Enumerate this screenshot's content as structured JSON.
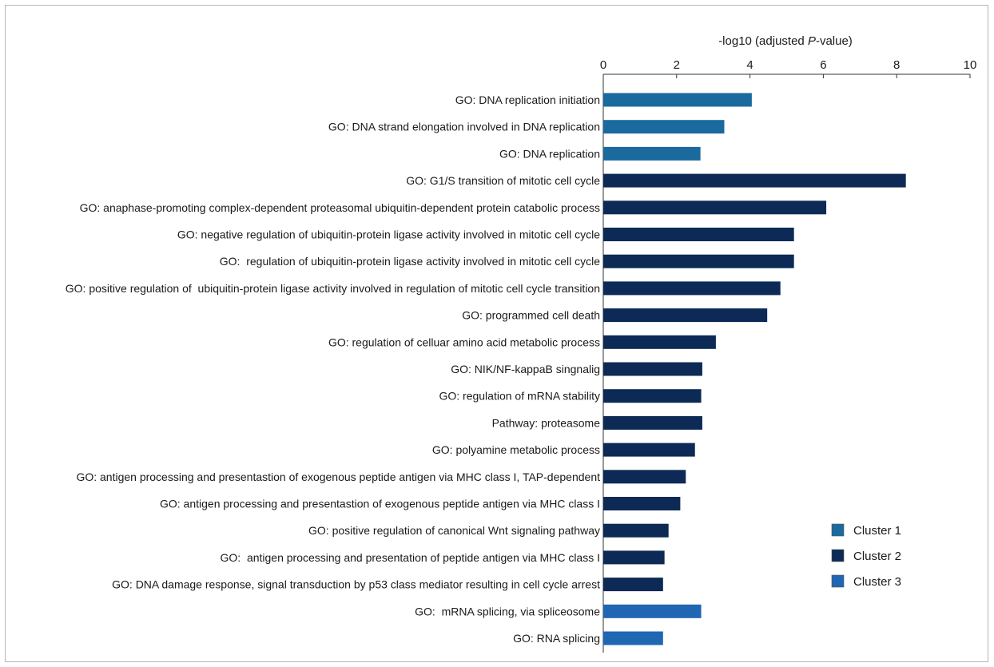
{
  "chart_data": {
    "type": "bar",
    "orientation": "horizontal",
    "x_axis_title_prefix": "-log10 (adjusted ",
    "x_axis_title_italic": "P",
    "x_axis_title_suffix": "-value)",
    "x_axis_position": "top",
    "xlim": [
      0,
      10
    ],
    "x_ticks": [
      0,
      2,
      4,
      6,
      8,
      10
    ],
    "grid": false,
    "legend_position": "bottom-right",
    "series": [
      {
        "name": "Cluster 1",
        "color": "#1a6a9e"
      },
      {
        "name": "Cluster 2",
        "color": "#0c2a55"
      },
      {
        "name": "Cluster 3",
        "color": "#1f66b3"
      }
    ],
    "bars": [
      {
        "label": "GO: DNA replication initiation",
        "value": 4.05,
        "cluster": 0
      },
      {
        "label": "GO: DNA strand elongation involved in DNA replication",
        "value": 3.3,
        "cluster": 0
      },
      {
        "label": "GO: DNA replication",
        "value": 2.65,
        "cluster": 0
      },
      {
        "label": "GO: G1/S transition of mitotic cell cycle",
        "value": 8.25,
        "cluster": 1
      },
      {
        "label": "GO: anaphase-promoting complex-dependent proteasomal ubiquitin-dependent protein catabolic process",
        "value": 6.08,
        "cluster": 1
      },
      {
        "label": "GO: negative regulation of ubiquitin-protein ligase activity involved in mitotic cell cycle",
        "value": 5.2,
        "cluster": 1
      },
      {
        "label": "GO:  regulation of ubiquitin-protein ligase activity involved in mitotic cell cycle",
        "value": 5.2,
        "cluster": 1
      },
      {
        "label": "GO: positive regulation of  ubiquitin-protein ligase activity involved in regulation of mitotic cell cycle transition",
        "value": 4.83,
        "cluster": 1
      },
      {
        "label": "GO: programmed cell death",
        "value": 4.47,
        "cluster": 1
      },
      {
        "label": "GO: regulation of celluar amino acid metabolic process",
        "value": 3.07,
        "cluster": 1
      },
      {
        "label": "GO: NIK/NF-kappaB singnalig",
        "value": 2.7,
        "cluster": 1
      },
      {
        "label": "GO: regulation of mRNA stability",
        "value": 2.67,
        "cluster": 1
      },
      {
        "label": "Pathway: proteasome",
        "value": 2.7,
        "cluster": 1
      },
      {
        "label": "GO: polyamine metabolic process",
        "value": 2.5,
        "cluster": 1
      },
      {
        "label": "GO: antigen processing and presentastion of exogenous peptide antigen via MHC class I, TAP-dependent",
        "value": 2.25,
        "cluster": 1
      },
      {
        "label": "GO: antigen processing and presentastion of exogenous peptide antigen via MHC class I",
        "value": 2.1,
        "cluster": 1
      },
      {
        "label": "GO: positive regulation of canonical Wnt signaling pathway",
        "value": 1.78,
        "cluster": 1
      },
      {
        "label": "GO:  antigen processing and presentation of peptide antigen via MHC class I",
        "value": 1.67,
        "cluster": 1
      },
      {
        "label": "GO: DNA damage response, signal transduction by p53 class mediator resulting in cell cycle arrest",
        "value": 1.63,
        "cluster": 1
      },
      {
        "label": "GO:  mRNA splicing, via spliceosome",
        "value": 2.67,
        "cluster": 2
      },
      {
        "label": "GO: RNA splicing",
        "value": 1.63,
        "cluster": 2
      }
    ]
  }
}
